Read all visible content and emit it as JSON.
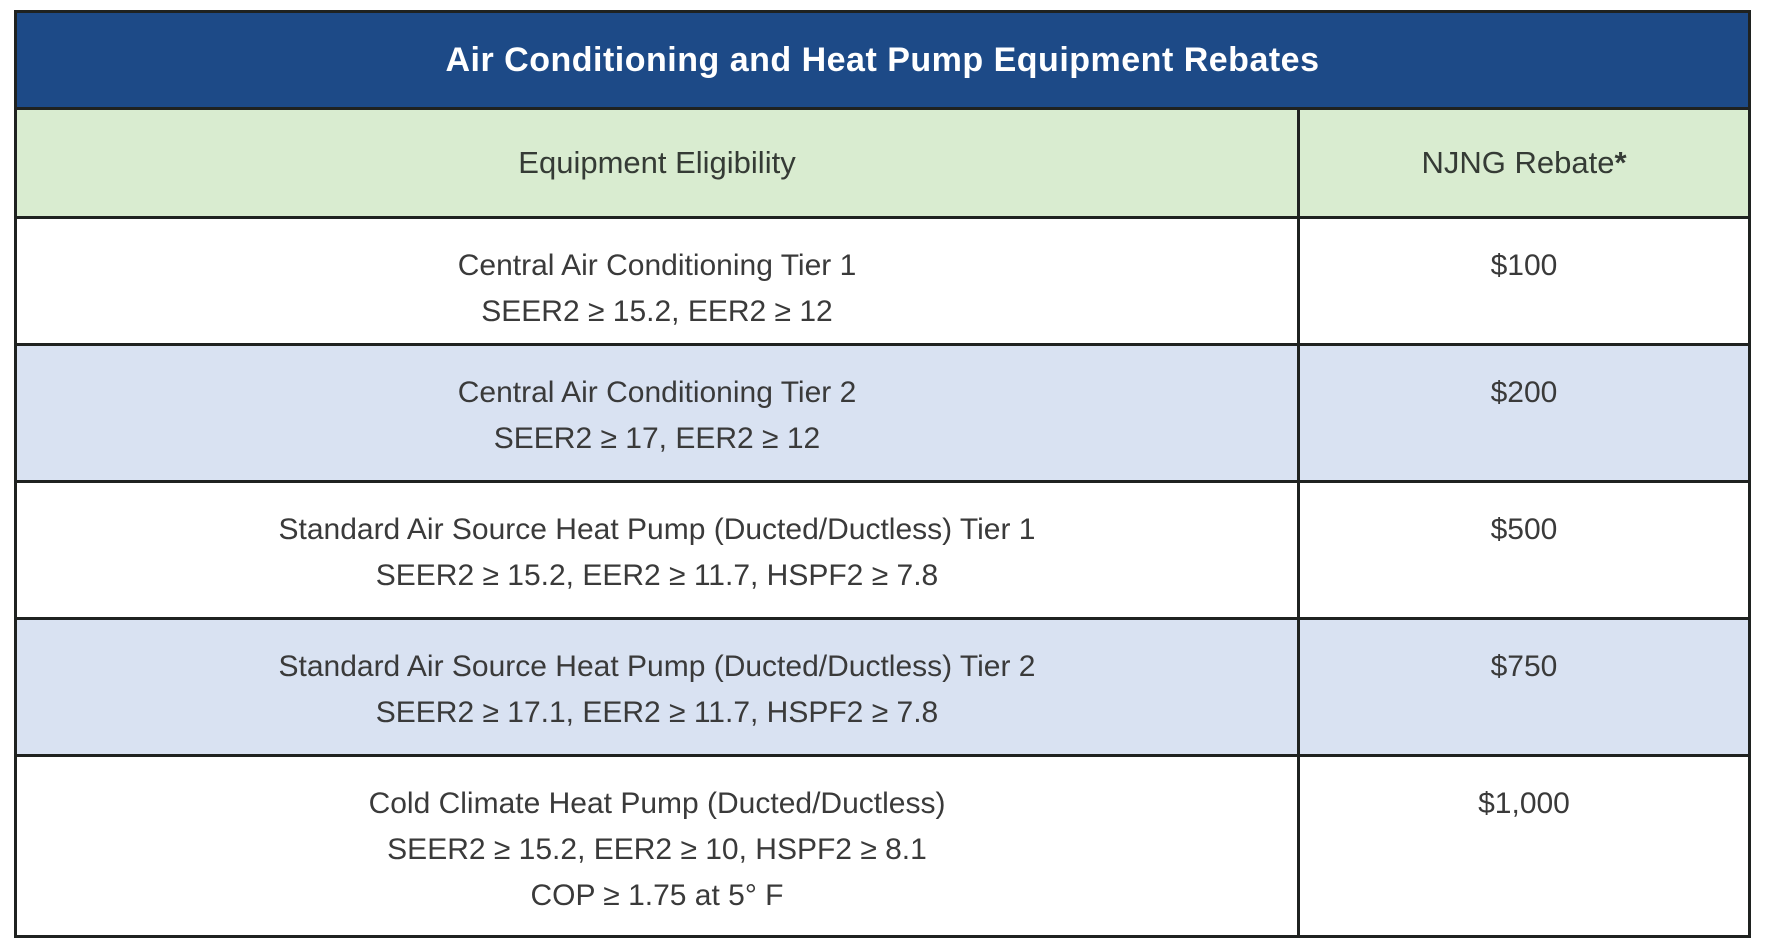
{
  "title": "Air Conditioning and Heat Pump Equipment Rebates",
  "header": {
    "eligibility": "Equipment Eligibility",
    "rebate": "NJNG Rebate",
    "rebate_mark": "*"
  },
  "rows": [
    {
      "name": "Central Air Conditioning Tier 1",
      "specs": "SEER2 ≥ 15.2, EER2 ≥ 12",
      "rebate": "$100"
    },
    {
      "name": "Central Air Conditioning Tier 2",
      "specs": "SEER2 ≥ 17, EER2 ≥ 12",
      "rebate": "$200"
    },
    {
      "name": "Standard Air Source Heat Pump (Ducted/Ductless) Tier 1",
      "specs": "SEER2 ≥ 15.2, EER2 ≥ 11.7, HSPF2 ≥ 7.8",
      "rebate": "$500"
    },
    {
      "name": "Standard Air Source Heat Pump (Ducted/Ductless) Tier 2",
      "specs": "SEER2 ≥ 17.1, EER2 ≥ 11.7, HSPF2 ≥ 7.8",
      "rebate": "$750"
    },
    {
      "name": "Cold Climate Heat Pump (Ducted/Ductless)",
      "specs": "SEER2 ≥ 15.2, EER2 ≥ 10, HSPF2 ≥ 8.1",
      "specs2": "COP ≥ 1.75 at 5° F",
      "rebate": "$1,000"
    }
  ],
  "colors": {
    "title_bg": "#1d4a87",
    "title_text": "#ffffff",
    "subheader_bg": "#d9ecd0",
    "row_bg": "#ffffff",
    "alt_row_bg": "#d9e2f2",
    "border": "#1f2220",
    "body_text": "#3a3a3a"
  }
}
